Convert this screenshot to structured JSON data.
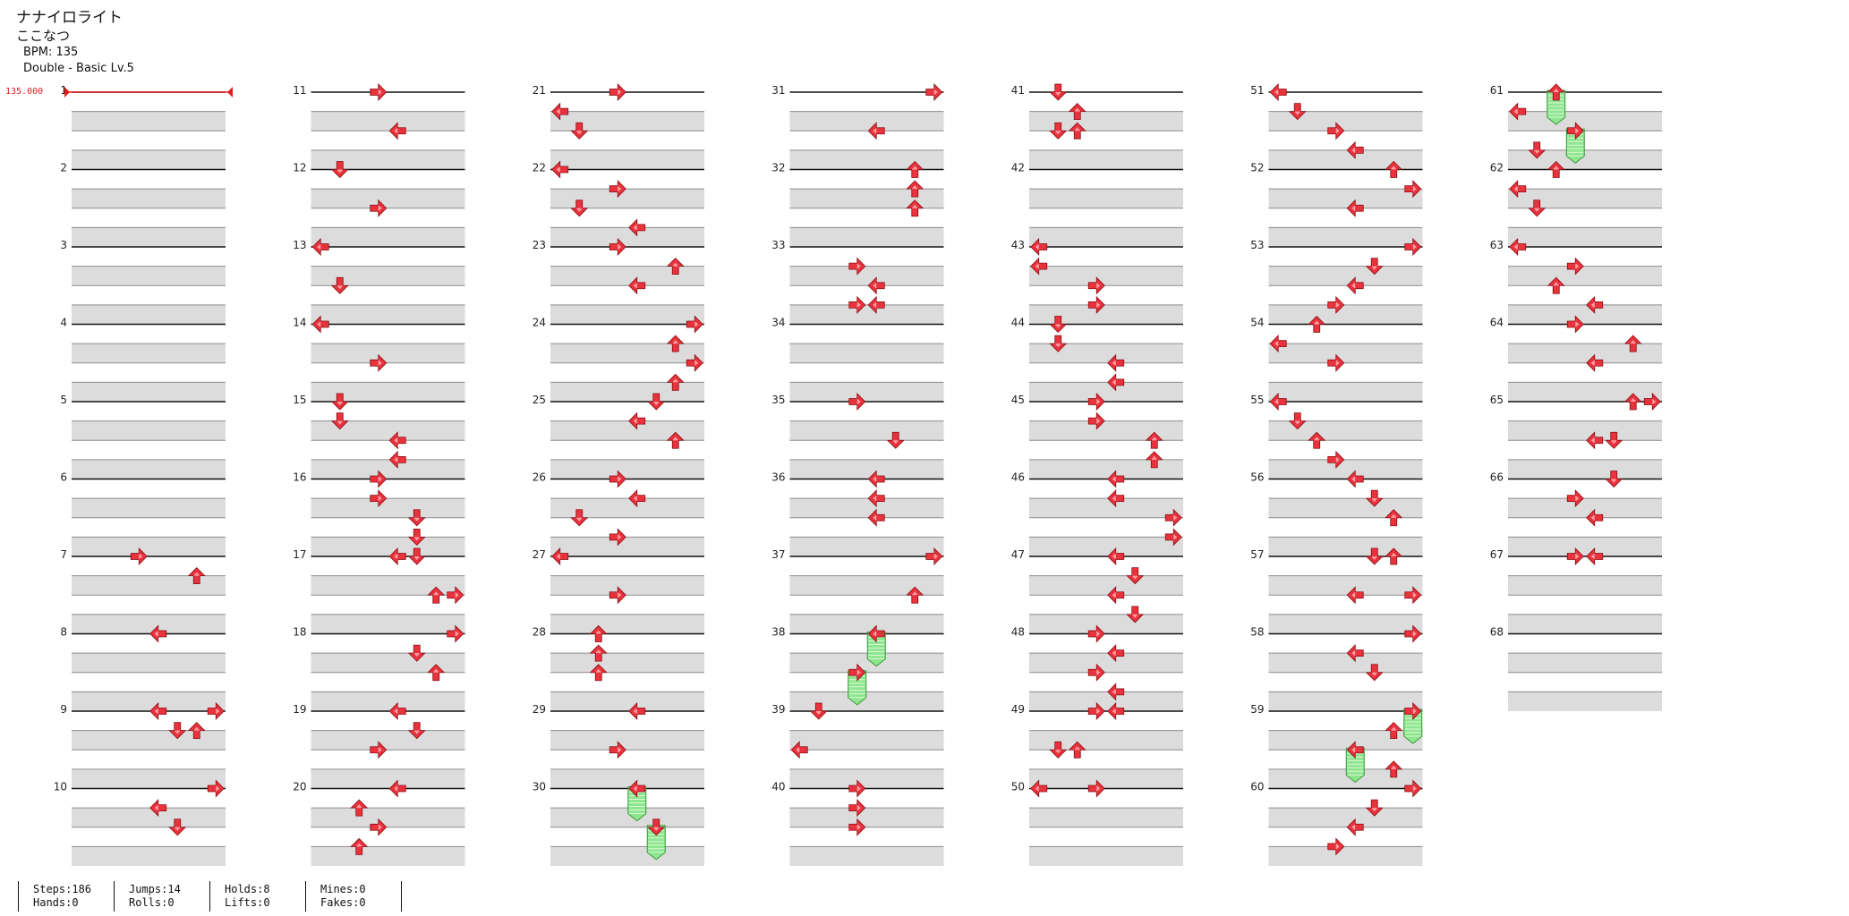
{
  "song": {
    "title": "ナナイロライト",
    "artist": "ここなつ",
    "bpm": "BPM: 135",
    "difficulty": "Double - Basic Lv.5",
    "initial_bpm_marker": "135.000"
  },
  "chart": {
    "columns": [
      {
        "start": 1,
        "end": 10
      },
      {
        "start": 11,
        "end": 20
      },
      {
        "start": 21,
        "end": 30
      },
      {
        "start": 31,
        "end": 40
      },
      {
        "start": 41,
        "end": 50
      },
      {
        "start": 51,
        "end": 60
      },
      {
        "start": 61,
        "end": 68
      }
    ],
    "lanes": 8,
    "rows_per_measure": 4,
    "colors": {
      "arrow": "#e8323c",
      "arrow_inner": "#ff9aa0",
      "hold": "#8ee68e",
      "hold_border": "#3a9a3a",
      "bpm_line": "#e02020",
      "band": "#dcdcdc"
    },
    "notes": [
      {
        "m": 7,
        "r": 0,
        "l": 3,
        "d": "right"
      },
      {
        "m": 7,
        "r": 1,
        "l": 6,
        "d": "up"
      },
      {
        "m": 8,
        "r": 0,
        "l": 4,
        "d": "left"
      },
      {
        "m": 9,
        "r": 0,
        "l": 4,
        "d": "left"
      },
      {
        "m": 9,
        "r": 0,
        "l": 7,
        "d": "right"
      },
      {
        "m": 9,
        "r": 1,
        "l": 5,
        "d": "down"
      },
      {
        "m": 9,
        "r": 1,
        "l": 6,
        "d": "up"
      },
      {
        "m": 10,
        "r": 0,
        "l": 7,
        "d": "right"
      },
      {
        "m": 10,
        "r": 1,
        "l": 4,
        "d": "left"
      },
      {
        "m": 10,
        "r": 2,
        "l": 5,
        "d": "down"
      },
      {
        "m": 11,
        "r": 0,
        "l": 3,
        "d": "right"
      },
      {
        "m": 11,
        "r": 2,
        "l": 4,
        "d": "left"
      },
      {
        "m": 12,
        "r": 0,
        "l": 1,
        "d": "down"
      },
      {
        "m": 12,
        "r": 2,
        "l": 3,
        "d": "right"
      },
      {
        "m": 13,
        "r": 0,
        "l": 0,
        "d": "left"
      },
      {
        "m": 13,
        "r": 2,
        "l": 1,
        "d": "down"
      },
      {
        "m": 14,
        "r": 0,
        "l": 0,
        "d": "left"
      },
      {
        "m": 14,
        "r": 2,
        "l": 3,
        "d": "right"
      },
      {
        "m": 15,
        "r": 0,
        "l": 1,
        "d": "down"
      },
      {
        "m": 15,
        "r": 1,
        "l": 1,
        "d": "down"
      },
      {
        "m": 15,
        "r": 2,
        "l": 4,
        "d": "left"
      },
      {
        "m": 15,
        "r": 3,
        "l": 4,
        "d": "left"
      },
      {
        "m": 16,
        "r": 0,
        "l": 3,
        "d": "right"
      },
      {
        "m": 16,
        "r": 1,
        "l": 3,
        "d": "right"
      },
      {
        "m": 16,
        "r": 2,
        "l": 5,
        "d": "down"
      },
      {
        "m": 16,
        "r": 3,
        "l": 5,
        "d": "down"
      },
      {
        "m": 17,
        "r": 0,
        "l": 4,
        "d": "left"
      },
      {
        "m": 17,
        "r": 0,
        "l": 5,
        "d": "down"
      },
      {
        "m": 17,
        "r": 2,
        "l": 6,
        "d": "up"
      },
      {
        "m": 17,
        "r": 2,
        "l": 7,
        "d": "right"
      },
      {
        "m": 18,
        "r": 0,
        "l": 7,
        "d": "right"
      },
      {
        "m": 18,
        "r": 1,
        "l": 5,
        "d": "down"
      },
      {
        "m": 18,
        "r": 2,
        "l": 6,
        "d": "up"
      },
      {
        "m": 19,
        "r": 0,
        "l": 4,
        "d": "left"
      },
      {
        "m": 19,
        "r": 1,
        "l": 5,
        "d": "down"
      },
      {
        "m": 19,
        "r": 2,
        "l": 3,
        "d": "right"
      },
      {
        "m": 20,
        "r": 0,
        "l": 4,
        "d": "left"
      },
      {
        "m": 20,
        "r": 1,
        "l": 2,
        "d": "up"
      },
      {
        "m": 20,
        "r": 2,
        "l": 3,
        "d": "right"
      },
      {
        "m": 20,
        "r": 3,
        "l": 2,
        "d": "up"
      },
      {
        "m": 21,
        "r": 0,
        "l": 3,
        "d": "right"
      },
      {
        "m": 21,
        "r": 1,
        "l": 0,
        "d": "left"
      },
      {
        "m": 21,
        "r": 2,
        "l": 1,
        "d": "down"
      },
      {
        "m": 22,
        "r": 0,
        "l": 0,
        "d": "left"
      },
      {
        "m": 22,
        "r": 1,
        "l": 3,
        "d": "right"
      },
      {
        "m": 22,
        "r": 2,
        "l": 1,
        "d": "down"
      },
      {
        "m": 22,
        "r": 3,
        "l": 4,
        "d": "left"
      },
      {
        "m": 23,
        "r": 0,
        "l": 3,
        "d": "right"
      },
      {
        "m": 23,
        "r": 1,
        "l": 6,
        "d": "up"
      },
      {
        "m": 23,
        "r": 2,
        "l": 4,
        "d": "left"
      },
      {
        "m": 24,
        "r": 0,
        "l": 7,
        "d": "right"
      },
      {
        "m": 24,
        "r": 1,
        "l": 6,
        "d": "up"
      },
      {
        "m": 24,
        "r": 2,
        "l": 7,
        "d": "right"
      },
      {
        "m": 24,
        "r": 3,
        "l": 6,
        "d": "up"
      },
      {
        "m": 25,
        "r": 0,
        "l": 5,
        "d": "down"
      },
      {
        "m": 25,
        "r": 1,
        "l": 4,
        "d": "left"
      },
      {
        "m": 25,
        "r": 2,
        "l": 6,
        "d": "up"
      },
      {
        "m": 26,
        "r": 0,
        "l": 3,
        "d": "right"
      },
      {
        "m": 26,
        "r": 1,
        "l": 4,
        "d": "left"
      },
      {
        "m": 26,
        "r": 2,
        "l": 1,
        "d": "down"
      },
      {
        "m": 26,
        "r": 3,
        "l": 3,
        "d": "right"
      },
      {
        "m": 27,
        "r": 0,
        "l": 0,
        "d": "left"
      },
      {
        "m": 27,
        "r": 2,
        "l": 3,
        "d": "right"
      },
      {
        "m": 28,
        "r": 0,
        "l": 2,
        "d": "up"
      },
      {
        "m": 28,
        "r": 1,
        "l": 2,
        "d": "up"
      },
      {
        "m": 28,
        "r": 2,
        "l": 2,
        "d": "up"
      },
      {
        "m": 29,
        "r": 0,
        "l": 4,
        "d": "left"
      },
      {
        "m": 29,
        "r": 2,
        "l": 3,
        "d": "right"
      },
      {
        "m": 30,
        "r": 0,
        "l": 4,
        "d": "left",
        "hold": 1
      },
      {
        "m": 30,
        "r": 2,
        "l": 5,
        "d": "down",
        "hold": 1
      },
      {
        "m": 31,
        "r": 0,
        "l": 7,
        "d": "right"
      },
      {
        "m": 31,
        "r": 2,
        "l": 4,
        "d": "left"
      },
      {
        "m": 32,
        "r": 0,
        "l": 6,
        "d": "up"
      },
      {
        "m": 32,
        "r": 1,
        "l": 6,
        "d": "up"
      },
      {
        "m": 32,
        "r": 2,
        "l": 6,
        "d": "up"
      },
      {
        "m": 33,
        "r": 1,
        "l": 3,
        "d": "right"
      },
      {
        "m": 33,
        "r": 2,
        "l": 4,
        "d": "left"
      },
      {
        "m": 33,
        "r": 3,
        "l": 3,
        "d": "right"
      },
      {
        "m": 33,
        "r": 3,
        "l": 4,
        "d": "left"
      },
      {
        "m": 35,
        "r": 0,
        "l": 3,
        "d": "right"
      },
      {
        "m": 35,
        "r": 2,
        "l": 5,
        "d": "down"
      },
      {
        "m": 36,
        "r": 0,
        "l": 4,
        "d": "left"
      },
      {
        "m": 36,
        "r": 1,
        "l": 4,
        "d": "left"
      },
      {
        "m": 36,
        "r": 2,
        "l": 4,
        "d": "left"
      },
      {
        "m": 37,
        "r": 0,
        "l": 7,
        "d": "right"
      },
      {
        "m": 37,
        "r": 2,
        "l": 6,
        "d": "up"
      },
      {
        "m": 38,
        "r": 0,
        "l": 4,
        "d": "left",
        "hold": 1
      },
      {
        "m": 38,
        "r": 2,
        "l": 3,
        "d": "right",
        "hold": 1
      },
      {
        "m": 39,
        "r": 0,
        "l": 1,
        "d": "down"
      },
      {
        "m": 39,
        "r": 2,
        "l": 0,
        "d": "left"
      },
      {
        "m": 40,
        "r": 0,
        "l": 3,
        "d": "right"
      },
      {
        "m": 40,
        "r": 1,
        "l": 3,
        "d": "right"
      },
      {
        "m": 40,
        "r": 2,
        "l": 3,
        "d": "right"
      },
      {
        "m": 41,
        "r": 0,
        "l": 1,
        "d": "down"
      },
      {
        "m": 41,
        "r": 1,
        "l": 2,
        "d": "up"
      },
      {
        "m": 41,
        "r": 2,
        "l": 1,
        "d": "down"
      },
      {
        "m": 41,
        "r": 2,
        "l": 2,
        "d": "up"
      },
      {
        "m": 43,
        "r": 0,
        "l": 0,
        "d": "left"
      },
      {
        "m": 43,
        "r": 1,
        "l": 0,
        "d": "left"
      },
      {
        "m": 43,
        "r": 2,
        "l": 3,
        "d": "right"
      },
      {
        "m": 43,
        "r": 3,
        "l": 3,
        "d": "right"
      },
      {
        "m": 44,
        "r": 0,
        "l": 1,
        "d": "down"
      },
      {
        "m": 44,
        "r": 1,
        "l": 1,
        "d": "down"
      },
      {
        "m": 44,
        "r": 2,
        "l": 4,
        "d": "left"
      },
      {
        "m": 44,
        "r": 3,
        "l": 4,
        "d": "left"
      },
      {
        "m": 45,
        "r": 0,
        "l": 3,
        "d": "right"
      },
      {
        "m": 45,
        "r": 1,
        "l": 3,
        "d": "right"
      },
      {
        "m": 45,
        "r": 2,
        "l": 6,
        "d": "up"
      },
      {
        "m": 45,
        "r": 3,
        "l": 6,
        "d": "up"
      },
      {
        "m": 46,
        "r": 0,
        "l": 4,
        "d": "left"
      },
      {
        "m": 46,
        "r": 1,
        "l": 4,
        "d": "left"
      },
      {
        "m": 46,
        "r": 2,
        "l": 7,
        "d": "right"
      },
      {
        "m": 46,
        "r": 3,
        "l": 7,
        "d": "right"
      },
      {
        "m": 47,
        "r": 0,
        "l": 4,
        "d": "left"
      },
      {
        "m": 47,
        "r": 1,
        "l": 5,
        "d": "down"
      },
      {
        "m": 47,
        "r": 2,
        "l": 4,
        "d": "left"
      },
      {
        "m": 47,
        "r": 3,
        "l": 5,
        "d": "down"
      },
      {
        "m": 48,
        "r": 0,
        "l": 3,
        "d": "right"
      },
      {
        "m": 48,
        "r": 1,
        "l": 4,
        "d": "left"
      },
      {
        "m": 48,
        "r": 2,
        "l": 3,
        "d": "right"
      },
      {
        "m": 48,
        "r": 3,
        "l": 4,
        "d": "left"
      },
      {
        "m": 49,
        "r": 0,
        "l": 3,
        "d": "right"
      },
      {
        "m": 49,
        "r": 0,
        "l": 4,
        "d": "left"
      },
      {
        "m": 49,
        "r": 2,
        "l": 1,
        "d": "down"
      },
      {
        "m": 49,
        "r": 2,
        "l": 2,
        "d": "up"
      },
      {
        "m": 50,
        "r": 0,
        "l": 0,
        "d": "left"
      },
      {
        "m": 50,
        "r": 0,
        "l": 3,
        "d": "right"
      },
      {
        "m": 51,
        "r": 0,
        "l": 0,
        "d": "left"
      },
      {
        "m": 51,
        "r": 1,
        "l": 1,
        "d": "down"
      },
      {
        "m": 51,
        "r": 2,
        "l": 3,
        "d": "right"
      },
      {
        "m": 51,
        "r": 3,
        "l": 4,
        "d": "left"
      },
      {
        "m": 52,
        "r": 0,
        "l": 6,
        "d": "up"
      },
      {
        "m": 52,
        "r": 1,
        "l": 7,
        "d": "right"
      },
      {
        "m": 52,
        "r": 2,
        "l": 4,
        "d": "left"
      },
      {
        "m": 53,
        "r": 0,
        "l": 7,
        "d": "right"
      },
      {
        "m": 53,
        "r": 1,
        "l": 5,
        "d": "down"
      },
      {
        "m": 53,
        "r": 2,
        "l": 4,
        "d": "left"
      },
      {
        "m": 53,
        "r": 3,
        "l": 3,
        "d": "right"
      },
      {
        "m": 54,
        "r": 0,
        "l": 2,
        "d": "up"
      },
      {
        "m": 54,
        "r": 1,
        "l": 0,
        "d": "left"
      },
      {
        "m": 54,
        "r": 2,
        "l": 3,
        "d": "right"
      },
      {
        "m": 55,
        "r": 0,
        "l": 0,
        "d": "left"
      },
      {
        "m": 55,
        "r": 1,
        "l": 1,
        "d": "down"
      },
      {
        "m": 55,
        "r": 2,
        "l": 2,
        "d": "up"
      },
      {
        "m": 55,
        "r": 3,
        "l": 3,
        "d": "right"
      },
      {
        "m": 56,
        "r": 0,
        "l": 4,
        "d": "left"
      },
      {
        "m": 56,
        "r": 1,
        "l": 5,
        "d": "down"
      },
      {
        "m": 56,
        "r": 2,
        "l": 6,
        "d": "up"
      },
      {
        "m": 57,
        "r": 0,
        "l": 5,
        "d": "down"
      },
      {
        "m": 57,
        "r": 0,
        "l": 6,
        "d": "up"
      },
      {
        "m": 57,
        "r": 2,
        "l": 4,
        "d": "left"
      },
      {
        "m": 57,
        "r": 2,
        "l": 7,
        "d": "right"
      },
      {
        "m": 58,
        "r": 0,
        "l": 7,
        "d": "right"
      },
      {
        "m": 58,
        "r": 1,
        "l": 4,
        "d": "left"
      },
      {
        "m": 58,
        "r": 2,
        "l": 5,
        "d": "down"
      },
      {
        "m": 59,
        "r": 0,
        "l": 7,
        "d": "right",
        "hold": 1
      },
      {
        "m": 59,
        "r": 1,
        "l": 6,
        "d": "up"
      },
      {
        "m": 59,
        "r": 2,
        "l": 4,
        "d": "left",
        "hold": 1
      },
      {
        "m": 59,
        "r": 3,
        "l": 6,
        "d": "up"
      },
      {
        "m": 60,
        "r": 0,
        "l": 7,
        "d": "right"
      },
      {
        "m": 60,
        "r": 1,
        "l": 5,
        "d": "down"
      },
      {
        "m": 60,
        "r": 2,
        "l": 4,
        "d": "left"
      },
      {
        "m": 60,
        "r": 3,
        "l": 3,
        "d": "right"
      },
      {
        "m": 61,
        "r": 0,
        "l": 2,
        "d": "up",
        "hold": 1
      },
      {
        "m": 61,
        "r": 1,
        "l": 0,
        "d": "left"
      },
      {
        "m": 61,
        "r": 2,
        "l": 3,
        "d": "right",
        "hold": 1
      },
      {
        "m": 61,
        "r": 3,
        "l": 1,
        "d": "down"
      },
      {
        "m": 62,
        "r": 0,
        "l": 2,
        "d": "up"
      },
      {
        "m": 62,
        "r": 1,
        "l": 0,
        "d": "left"
      },
      {
        "m": 62,
        "r": 2,
        "l": 1,
        "d": "down"
      },
      {
        "m": 63,
        "r": 0,
        "l": 0,
        "d": "left"
      },
      {
        "m": 63,
        "r": 1,
        "l": 3,
        "d": "right"
      },
      {
        "m": 63,
        "r": 2,
        "l": 2,
        "d": "up"
      },
      {
        "m": 63,
        "r": 3,
        "l": 4,
        "d": "left"
      },
      {
        "m": 64,
        "r": 0,
        "l": 3,
        "d": "right"
      },
      {
        "m": 64,
        "r": 1,
        "l": 6,
        "d": "up"
      },
      {
        "m": 64,
        "r": 2,
        "l": 4,
        "d": "left"
      },
      {
        "m": 65,
        "r": 0,
        "l": 6,
        "d": "up"
      },
      {
        "m": 65,
        "r": 0,
        "l": 7,
        "d": "right"
      },
      {
        "m": 65,
        "r": 2,
        "l": 4,
        "d": "left"
      },
      {
        "m": 65,
        "r": 2,
        "l": 5,
        "d": "down"
      },
      {
        "m": 66,
        "r": 0,
        "l": 5,
        "d": "down"
      },
      {
        "m": 66,
        "r": 1,
        "l": 3,
        "d": "right"
      },
      {
        "m": 66,
        "r": 2,
        "l": 4,
        "d": "left"
      },
      {
        "m": 67,
        "r": 0,
        "l": 3,
        "d": "right"
      },
      {
        "m": 67,
        "r": 0,
        "l": 4,
        "d": "left"
      }
    ]
  },
  "stats": [
    {
      "a": "Steps:186",
      "b": "Hands:0"
    },
    {
      "a": "Jumps:14",
      "b": "Rolls:0"
    },
    {
      "a": "Holds:8",
      "b": "Lifts:0"
    },
    {
      "a": "Mines:0",
      "b": "Fakes:0"
    }
  ]
}
